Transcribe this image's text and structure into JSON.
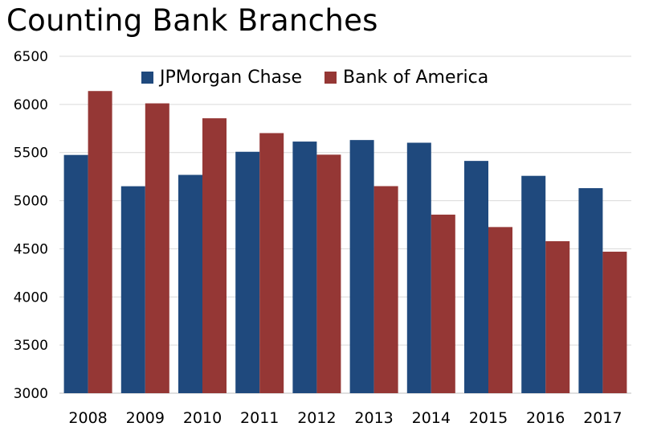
{
  "chart_data": {
    "type": "bar",
    "title": "Counting Bank Branches",
    "categories": [
      "2008",
      "2009",
      "2010",
      "2011",
      "2012",
      "2013",
      "2014",
      "2015",
      "2016",
      "2017"
    ],
    "series": [
      {
        "name": "JPMorgan Chase",
        "color": "#1f497d",
        "values": [
          5475,
          5150,
          5268,
          5508,
          5614,
          5630,
          5602,
          5413,
          5258,
          5130
        ]
      },
      {
        "name": "Bank of America",
        "color": "#953735",
        "values": [
          6139,
          6011,
          5856,
          5702,
          5478,
          5151,
          4855,
          4726,
          4579,
          4470
        ]
      }
    ],
    "ylim": [
      3000,
      6500
    ],
    "yticks": [
      3000,
      3500,
      4000,
      4500,
      5000,
      5500,
      6000,
      6500
    ],
    "grid": true,
    "legend_position": "top"
  }
}
